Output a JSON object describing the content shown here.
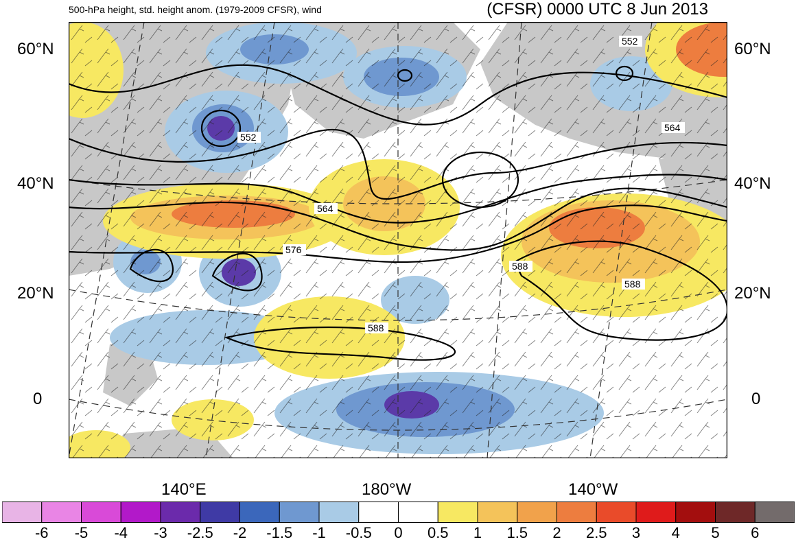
{
  "header": {
    "title_left": "500-hPa height, std. height anom. (1979-2009 CFSR), wind",
    "title_right": "(CFSR) 0000 UTC 8 Jun 2013"
  },
  "axes": {
    "lat_labels": [
      "60°N",
      "40°N",
      "20°N",
      "0"
    ],
    "lon_labels": [
      "140°E",
      "180°W",
      "140°W"
    ]
  },
  "contours": {
    "labels": [
      "552",
      "552",
      "564",
      "564",
      "576",
      "588",
      "588",
      "588"
    ]
  },
  "colorbar": {
    "labels": [
      "-6",
      "-5",
      "-4",
      "-3",
      "-2.5",
      "-2",
      "-1.5",
      "-1",
      "-0.5",
      "0",
      "0.5",
      "1",
      "1.5",
      "2",
      "2.5",
      "3",
      "4",
      "5",
      "6"
    ],
    "colors": [
      "#e8b4e6",
      "#e985e5",
      "#d94ad8",
      "#b219c9",
      "#6b2aab",
      "#3f3aa5",
      "#3b67bb",
      "#6f98d0",
      "#a9cbe6",
      "#ffffff",
      "#ffffff",
      "#f7e862",
      "#f4c35a",
      "#f1a24b",
      "#ed7d3f",
      "#e94b2a",
      "#df1b1b",
      "#a30e0e",
      "#6e2828",
      "#736b6b"
    ]
  },
  "map_colors": {
    "land": "#c8c8c8",
    "strong_negative": "#5b3aa8",
    "negative": "#6f98d0",
    "weak_negative": "#a9cbe6",
    "weak_positive": "#f7e862",
    "positive": "#f4c35a",
    "strong_positive": "#ed7d3f"
  }
}
